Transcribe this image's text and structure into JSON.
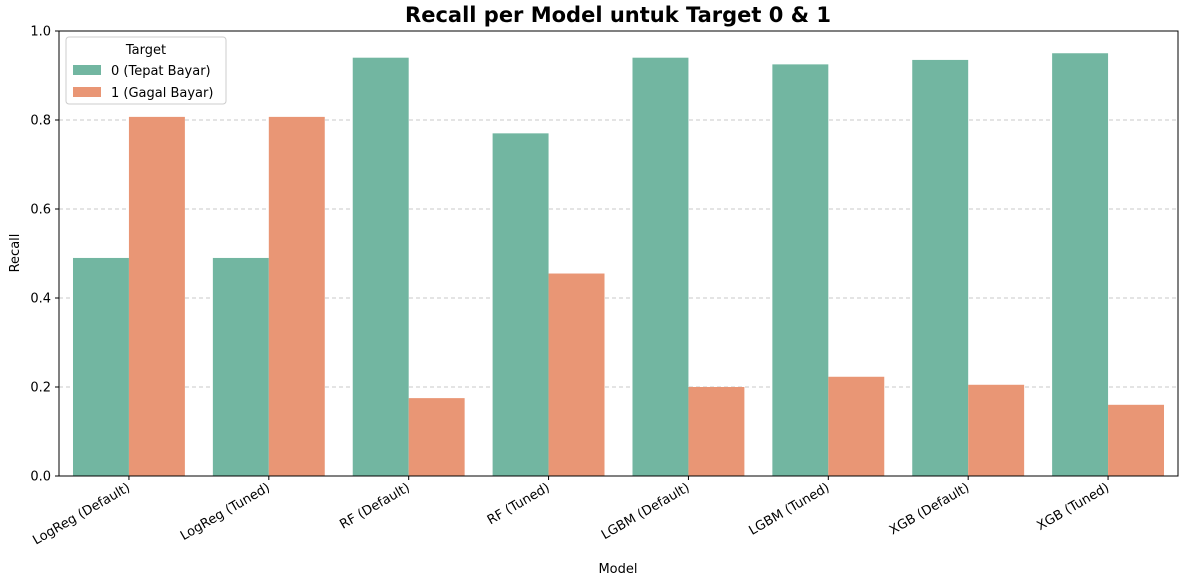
{
  "chart_data": {
    "type": "bar",
    "title": "Recall per Model untuk Target 0 & 1",
    "xlabel": "Model",
    "ylabel": "Recall",
    "ylim": [
      0,
      1.0
    ],
    "yticks": [
      "0.0",
      "0.2",
      "0.4",
      "0.6",
      "0.8",
      "1.0"
    ],
    "grid": "y-dashed",
    "legend": {
      "title": "Target",
      "placement": "top-left"
    },
    "categories": [
      "LogReg (Default)",
      "LogReg (Tuned)",
      "RF (Default)",
      "RF (Tuned)",
      "LGBM (Default)",
      "LGBM (Tuned)",
      "XGB (Default)",
      "XGB (Tuned)"
    ],
    "series": [
      {
        "name": "0 (Tepat Bayar)",
        "color": "#72b6a1",
        "values": [
          0.49,
          0.49,
          0.94,
          0.77,
          0.94,
          0.925,
          0.935,
          0.95
        ]
      },
      {
        "name": "1 (Gagal Bayar)",
        "color": "#e99675",
        "values": [
          0.807,
          0.807,
          0.175,
          0.455,
          0.2,
          0.223,
          0.205,
          0.16
        ]
      }
    ]
  }
}
